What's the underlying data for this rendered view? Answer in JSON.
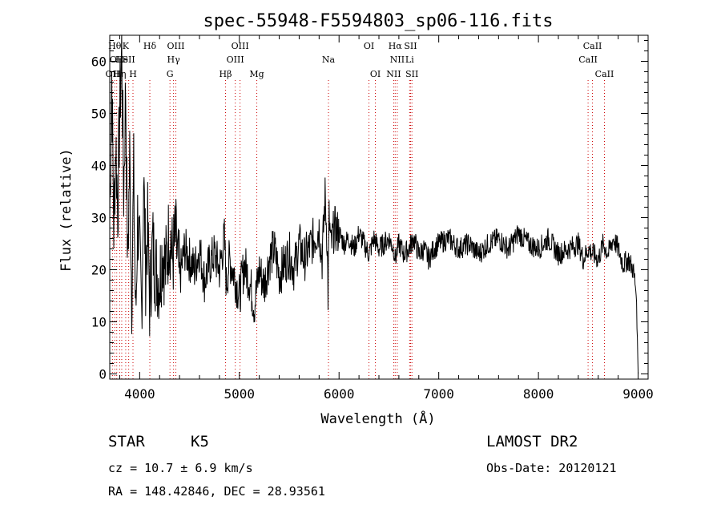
{
  "chart_data": {
    "type": "line",
    "title": "spec-55948-F5594803_sp06-116.fits",
    "xlabel": "Wavelength (Å)",
    "ylabel": "Flux (relative)",
    "xlim": [
      3700,
      9100
    ],
    "ylim": [
      -1,
      65
    ],
    "xticks": [
      4000,
      5000,
      6000,
      7000,
      8000,
      9000
    ],
    "yticks": [
      0,
      10,
      20,
      30,
      40,
      50,
      60
    ],
    "line_color": "#000000",
    "marker_color": "#cc0000",
    "series": [
      {
        "x": [
          3700,
          3720,
          3740,
          3760,
          3780,
          3800,
          3820,
          3840,
          3860,
          3880,
          3900,
          3920,
          3940,
          3960,
          3980,
          4000,
          4020,
          4040,
          4060,
          4080,
          4100,
          4130,
          4160,
          4200,
          4230,
          4260,
          4300,
          4330,
          4360,
          4400,
          4450,
          4500,
          4550,
          4600,
          4650,
          4700,
          4750,
          4800,
          4850,
          4870,
          4900,
          4950,
          5000,
          5050,
          5100,
          5150,
          5200,
          5250,
          5300,
          5350,
          5400,
          5450,
          5500,
          5550,
          5600,
          5650,
          5700,
          5750,
          5800,
          5830,
          5860,
          5880,
          5890,
          5900,
          5920,
          5950,
          6000,
          6050,
          6100,
          6150,
          6200,
          6250,
          6300,
          6350,
          6400,
          6450,
          6500,
          6550,
          6563,
          6600,
          6650,
          6700,
          6750,
          6800,
          6850,
          6900,
          6950,
          7000,
          7100,
          7200,
          7300,
          7400,
          7500,
          7600,
          7700,
          7800,
          7900,
          8000,
          8100,
          8200,
          8300,
          8400,
          8450,
          8500,
          8550,
          8600,
          8650,
          8700,
          8750,
          8800,
          8850,
          8900,
          8950,
          8980,
          9000
        ],
        "y": [
          30,
          58,
          28,
          45,
          32,
          50,
          62,
          35,
          55,
          20,
          42,
          15,
          38,
          10,
          30,
          22,
          12,
          38,
          20,
          28,
          14,
          25,
          20,
          18,
          24,
          20,
          28,
          22,
          26,
          18,
          24,
          22,
          20,
          24,
          18,
          21,
          23,
          20,
          26,
          17,
          22,
          19,
          15,
          21,
          18,
          13,
          20,
          17,
          22,
          24,
          19,
          21,
          23,
          20,
          25,
          22,
          24,
          26,
          28,
          22,
          34,
          26,
          15,
          30,
          24,
          28,
          27,
          25,
          26,
          24,
          27,
          25,
          23,
          26,
          24,
          25,
          26,
          24,
          22,
          25,
          23,
          24,
          26,
          23,
          24,
          22,
          24,
          25,
          26,
          24,
          25,
          23,
          25,
          26,
          24,
          27,
          25,
          24,
          26,
          23,
          24,
          25,
          22,
          24,
          23,
          22,
          25,
          23,
          26,
          24,
          21,
          22,
          20,
          16,
          0
        ]
      }
    ],
    "line_markers": [
      {
        "label": "OII",
        "x": 3727,
        "row": 2
      },
      {
        "label": "Hθ",
        "x": 3750,
        "row": 0
      },
      {
        "label": "OII",
        "x": 3770,
        "row": 1
      },
      {
        "label": "Hη",
        "x": 3800,
        "row": 2
      },
      {
        "label": "He",
        "x": 3820,
        "row": 1
      },
      {
        "label": "K",
        "x": 3860,
        "row": 0
      },
      {
        "label": "SII",
        "x": 3890,
        "row": 1
      },
      {
        "label": "H",
        "x": 3933,
        "row": 2
      },
      {
        "label": "Hδ",
        "x": 4102,
        "row": 0
      },
      {
        "label": "Hγ",
        "x": 4340,
        "row": 1
      },
      {
        "label": "OIII",
        "x": 4363,
        "row": 0
      },
      {
        "label": "G",
        "x": 4304,
        "row": 2
      },
      {
        "label": "Hβ",
        "x": 4861,
        "row": 2
      },
      {
        "label": "OIII",
        "x": 4959,
        "row": 1
      },
      {
        "label": "OIII",
        "x": 5007,
        "row": 0
      },
      {
        "label": "Mg",
        "x": 5175,
        "row": 2
      },
      {
        "label": "Na",
        "x": 5894,
        "row": 1
      },
      {
        "label": "OI",
        "x": 6300,
        "row": 0
      },
      {
        "label": "OI",
        "x": 6364,
        "row": 2
      },
      {
        "label": "Hα",
        "x": 6563,
        "row": 0
      },
      {
        "label": "NII",
        "x": 6584,
        "row": 1
      },
      {
        "label": "NII",
        "x": 6548,
        "row": 2
      },
      {
        "label": "SII",
        "x": 6717,
        "row": 0
      },
      {
        "label": "Li",
        "x": 6708,
        "row": 1
      },
      {
        "label": "SII",
        "x": 6731,
        "row": 2
      },
      {
        "label": "CaII",
        "x": 8542,
        "row": 0
      },
      {
        "label": "CaII",
        "x": 8498,
        "row": 1
      },
      {
        "label": "CaII",
        "x": 8662,
        "row": 2
      }
    ]
  },
  "info": {
    "object_class": "STAR",
    "subclass": "K5",
    "survey": "LAMOST DR2",
    "cz": "cz = 10.7 ± 6.9 km/s",
    "obs_date": "Obs-Date: 20120121",
    "coords": "RA = 148.42846, DEC =  28.93561"
  }
}
